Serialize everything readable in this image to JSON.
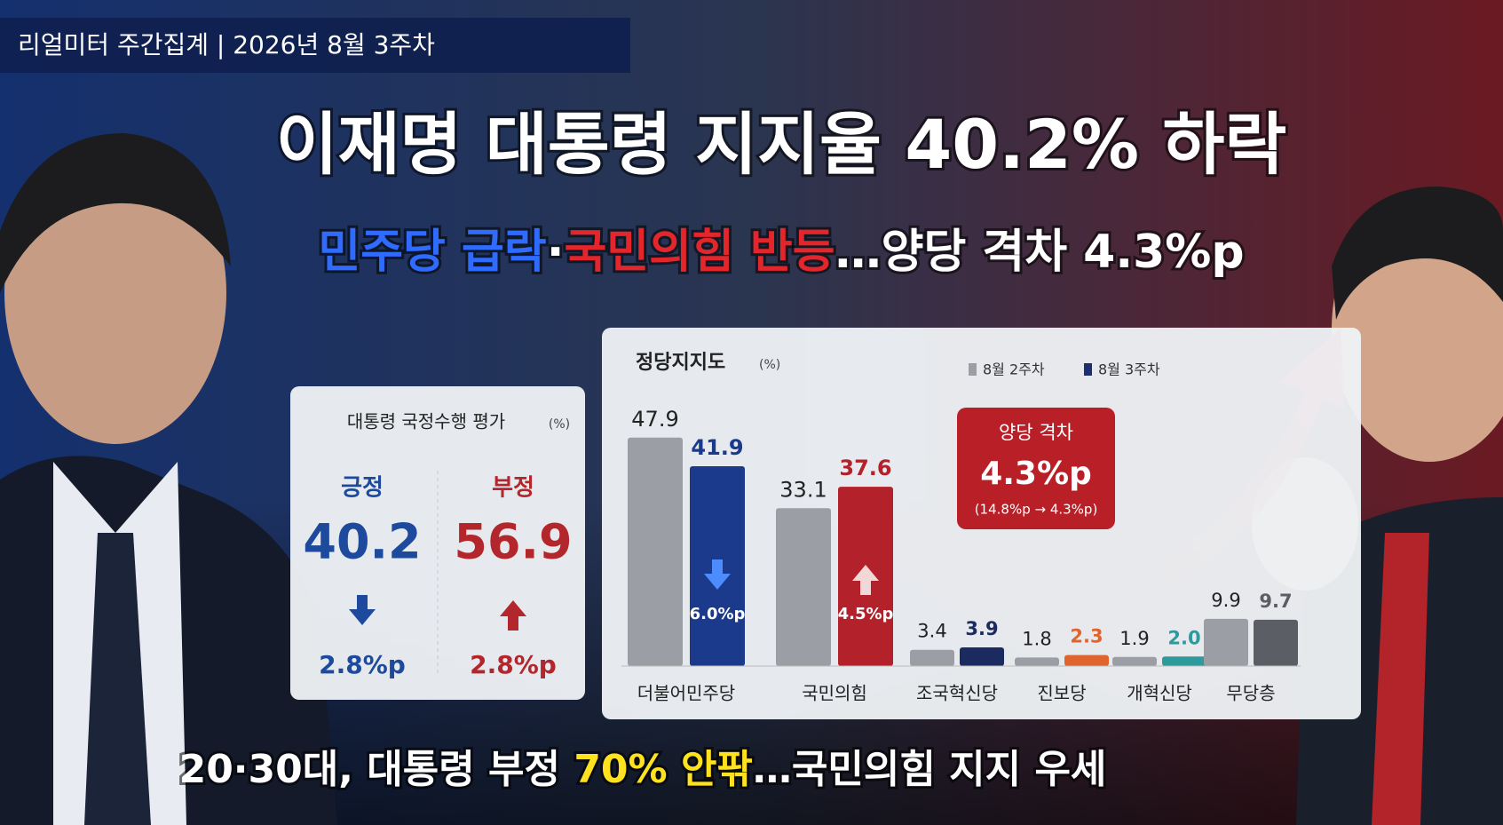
{
  "header": {
    "tag": "리얼미터 주간집계 | 2026년 8월 3주차",
    "headline": "이재명 대통령 지지율 40.2% 하락",
    "subheadline": [
      {
        "text": "민주당 급락",
        "color": "#2f6bff"
      },
      {
        "text": "·",
        "color": "#ffffff"
      },
      {
        "text": "국민의힘 반등",
        "color": "#e3262b"
      },
      {
        "text": "…양당 격차 4.3%p",
        "color": "#ffffff"
      }
    ]
  },
  "approval": {
    "title": "대통령 국정수행 평가",
    "unit": "(%)",
    "positive": {
      "label": "긍정",
      "value": "40.2",
      "change": "2.8%p",
      "color": "#1d4a9c"
    },
    "negative": {
      "label": "부정",
      "value": "56.9",
      "change": "2.8%p",
      "color": "#b3262b"
    }
  },
  "chart_data": {
    "type": "bar",
    "title": "정당지지도",
    "unit": "(%)",
    "categories": [
      "더불어민주당",
      "국민의힘",
      "조국혁신당",
      "진보당",
      "개혁신당",
      "무당층"
    ],
    "series": [
      {
        "name": "8월 2주차",
        "color": "#9b9ea4",
        "values": [
          47.9,
          33.1,
          3.4,
          1.8,
          1.9,
          9.9
        ]
      },
      {
        "name": "8월 3주차",
        "color": "#1b2f73",
        "colors": [
          "#1c3a8c",
          "#b3222a",
          "#1b2a5f",
          "#e0642e",
          "#2e9a9c",
          "#5b5e64"
        ],
        "values": [
          41.9,
          37.6,
          3.9,
          2.3,
          2.0,
          9.7
        ],
        "value_labels": [
          "41.9",
          "37.6",
          "3.9",
          "2.3",
          "2.0",
          "9.7"
        ]
      }
    ],
    "annotations": [
      {
        "category": 0,
        "text": "6.0%p",
        "direction": "down"
      },
      {
        "category": 1,
        "text": "4.5%p",
        "direction": "up"
      }
    ],
    "gap_box": {
      "title": "양당 격차",
      "value": "4.3%p",
      "detail": "(14.8%p → 4.3%p)"
    },
    "legend": "top-right"
  },
  "footer": [
    {
      "text": "20·30대, 대통령 부정 ",
      "color": "#ffffff"
    },
    {
      "text": "70% 안팎",
      "color": "#ffe21f"
    },
    {
      "text": "…국민의힘 지지 우세",
      "color": "#ffffff"
    }
  ]
}
